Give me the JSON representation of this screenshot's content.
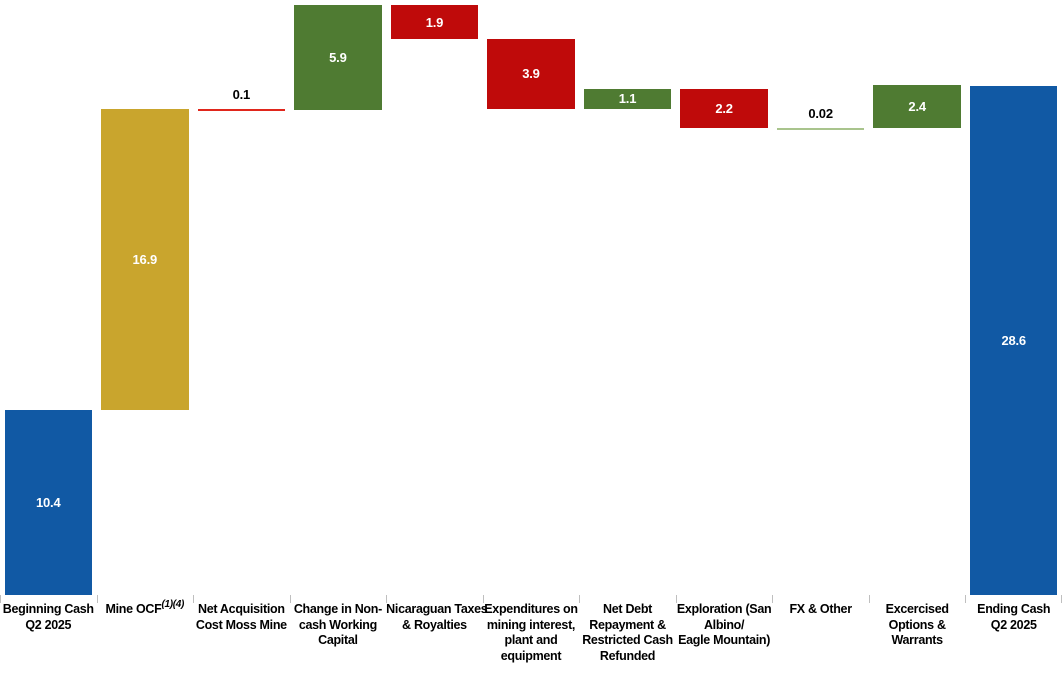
{
  "page": {
    "background": "#FFFFFF",
    "description_visible_text_only": true
  },
  "chart_data": {
    "type": "bar",
    "subtype": "waterfall",
    "title": "",
    "xlabel": "",
    "ylabel": "",
    "ylim": [
      0,
      33.4
    ],
    "grid": false,
    "legend": "none",
    "axis": {
      "tick_color": "#BFBFBF",
      "label_color": "#000000"
    },
    "palette": {
      "total_blue": "#1159A4",
      "ocf_gold": "#C9A52D",
      "increase_green": "#4F7B32",
      "decrease_red": "#BF0A0A",
      "thin_red": "#E0261C",
      "thin_green": "#A9C48D"
    },
    "categories": [
      "Beginning Cash Q2 2025",
      "Mine OCF (1)(4)",
      "Net Acquisition Cost Moss Mine",
      "Change in Non-cash Working Capital",
      "Nicaraguan Taxes & Royalties",
      "Expenditures on mining interest, plant and equipment",
      "Net Debt Repayment & Restricted Cash Refunded",
      "Exploration (San Albino/ Eagle Mountain)",
      "FX & Other",
      "Excercised Options & Warrants",
      "Ending Cash Q2 2025"
    ],
    "steps": [
      {
        "label": "Beginning Cash Q2 2025",
        "label_lines": [
          "Beginning Cash",
          "Q2 2025"
        ],
        "value": 10.4,
        "display": "10.4",
        "kind": "total",
        "color": "#1159A4",
        "value_label_position": "inside"
      },
      {
        "label": "Mine OCF",
        "label_lines": [
          "Mine OCF"
        ],
        "superscript": "(1)(4)",
        "value": 16.9,
        "display": "16.9",
        "kind": "increase",
        "color": "#C9A52D",
        "value_label_position": "inside"
      },
      {
        "label": "Net Acquisition Cost Moss Mine",
        "label_lines": [
          "Net Acquisition",
          "Cost Moss Mine"
        ],
        "value": 0.1,
        "display": "0.1",
        "kind": "decrease",
        "color": "#E0261C",
        "value_label_position": "above"
      },
      {
        "label": "Change in Non-cash Working Capital",
        "label_lines": [
          "Change in Non-",
          "cash Working",
          "Capital"
        ],
        "value": 5.9,
        "display": "5.9",
        "kind": "increase",
        "color": "#4F7B32",
        "value_label_position": "inside"
      },
      {
        "label": "Nicaraguan Taxes & Royalties",
        "label_lines": [
          "Nicaraguan Taxes",
          "& Royalties"
        ],
        "value": 1.9,
        "display": "1.9",
        "kind": "decrease",
        "color": "#BF0A0A",
        "value_label_position": "inside"
      },
      {
        "label": "Expenditures on mining interest, plant and equipment",
        "label_lines": [
          "Expenditures on",
          "mining interest,",
          "plant and",
          "equipment"
        ],
        "value": 3.9,
        "display": "3.9",
        "kind": "decrease",
        "color": "#BF0A0A",
        "value_label_position": "inside"
      },
      {
        "label": "Net Debt Repayment & Restricted Cash Refunded",
        "label_lines": [
          "Net Debt",
          "Repayment &",
          "Restricted Cash",
          "Refunded"
        ],
        "value": 1.1,
        "display": "1.1",
        "kind": "increase",
        "color": "#4F7B32",
        "value_label_position": "inside"
      },
      {
        "label": "Exploration (San Albino/ Eagle Mountain)",
        "label_lines": [
          "Exploration (San",
          "Albino/",
          "Eagle Mountain)"
        ],
        "value": 2.2,
        "display": "2.2",
        "kind": "decrease",
        "color": "#BF0A0A",
        "value_label_position": "inside"
      },
      {
        "label": "FX & Other",
        "label_lines": [
          "FX & Other"
        ],
        "value": 0.02,
        "display": "0.02",
        "kind": "increase",
        "color": "#A9C48D",
        "value_label_position": "above"
      },
      {
        "label": "Excercised Options & Warrants",
        "label_lines": [
          "Excercised",
          "Options &",
          "Warrants"
        ],
        "value": 2.4,
        "display": "2.4",
        "kind": "increase",
        "color": "#4F7B32",
        "value_label_position": "inside"
      },
      {
        "label": "Ending Cash Q2 2025",
        "label_lines": [
          "Ending Cash",
          "Q2 2025"
        ],
        "value": 28.6,
        "display": "28.6",
        "kind": "total",
        "color": "#1159A4",
        "value_label_position": "inside"
      }
    ]
  }
}
